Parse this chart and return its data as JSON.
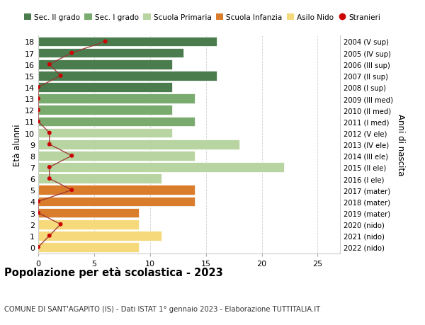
{
  "ages": [
    18,
    17,
    16,
    15,
    14,
    13,
    12,
    11,
    10,
    9,
    8,
    7,
    6,
    5,
    4,
    3,
    2,
    1,
    0
  ],
  "bar_values": [
    16,
    13,
    12,
    16,
    12,
    14,
    12,
    14,
    12,
    18,
    14,
    22,
    11,
    14,
    14,
    9,
    9,
    11,
    9
  ],
  "bar_colors": [
    "#4a7c4e",
    "#4a7c4e",
    "#4a7c4e",
    "#4a7c4e",
    "#4a7c4e",
    "#7aab6e",
    "#7aab6e",
    "#7aab6e",
    "#b8d4a0",
    "#b8d4a0",
    "#b8d4a0",
    "#b8d4a0",
    "#b8d4a0",
    "#d97c2b",
    "#d97c2b",
    "#d97c2b",
    "#f5d97a",
    "#f5d97a",
    "#f5d97a"
  ],
  "stranieri_values": [
    6,
    3,
    1,
    2,
    0,
    0,
    0,
    0,
    1,
    1,
    3,
    1,
    1,
    3,
    0,
    0,
    2,
    1,
    0
  ],
  "right_labels": [
    "2004 (V sup)",
    "2005 (IV sup)",
    "2006 (III sup)",
    "2007 (II sup)",
    "2008 (I sup)",
    "2009 (III med)",
    "2010 (II med)",
    "2011 (I med)",
    "2012 (V ele)",
    "2013 (IV ele)",
    "2014 (III ele)",
    "2015 (II ele)",
    "2016 (I ele)",
    "2017 (mater)",
    "2018 (mater)",
    "2019 (mater)",
    "2020 (nido)",
    "2021 (nido)",
    "2022 (nido)"
  ],
  "legend_labels": [
    "Sec. II grado",
    "Sec. I grado",
    "Scuola Primaria",
    "Scuola Infanzia",
    "Asilo Nido",
    "Stranieri"
  ],
  "legend_colors": [
    "#4a7c4e",
    "#7aab6e",
    "#b8d4a0",
    "#d97c2b",
    "#f5d97a",
    "#cc0000"
  ],
  "ylabel": "Età alunni",
  "right_ylabel": "Anni di nascita",
  "title": "Popolazione per età scolastica - 2023",
  "subtitle": "COMUNE DI SANT'AGAPITO (IS) - Dati ISTAT 1° gennaio 2023 - Elaborazione TUTTITALIA.IT",
  "xlim": [
    0,
    27
  ],
  "ylim": [
    -0.55,
    18.55
  ],
  "xticks": [
    0,
    5,
    10,
    15,
    20,
    25
  ],
  "background_color": "#ffffff",
  "grid_color": "#cccccc",
  "stranieri_color": "#cc0000",
  "stranieri_line_color": "#993333"
}
